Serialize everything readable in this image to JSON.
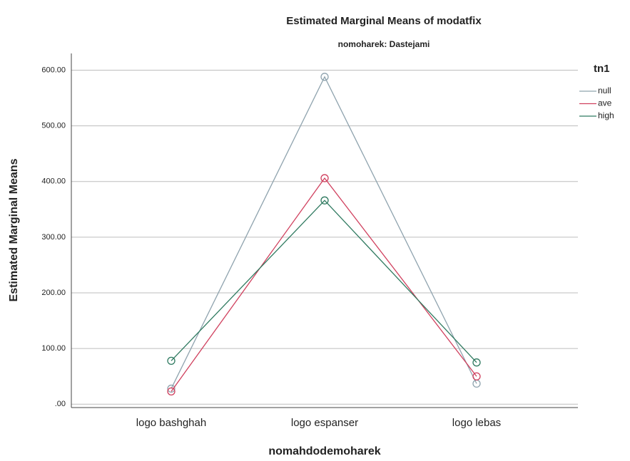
{
  "chart_data": {
    "type": "line",
    "title": "Estimated Marginal Means of modatfix",
    "subtitle": "nomoharek: Dastejami",
    "x_label": "nomahdodemoharek",
    "y_label": "Estimated Marginal Means",
    "categories": [
      "logo bashghah",
      "logo espanser",
      "logo lebas"
    ],
    "legend_title": "tn1",
    "legend": "right",
    "grid": true,
    "series": [
      {
        "name": "null",
        "color": "#8fa3ae",
        "values": [
          28,
          588,
          37
        ]
      },
      {
        "name": "ave",
        "color": "#d0405e",
        "values": [
          23,
          406,
          50
        ]
      },
      {
        "name": "high",
        "color": "#2f7a60",
        "values": [
          78,
          366,
          75
        ]
      }
    ],
    "ylim": [
      -6,
      630
    ],
    "yticks": [
      {
        "value": 0,
        "label": ".00"
      },
      {
        "value": 100,
        "label": "100.00"
      },
      {
        "value": 200,
        "label": "200.00"
      },
      {
        "value": 300,
        "label": "300.00"
      },
      {
        "value": 400,
        "label": "400.00"
      },
      {
        "value": 500,
        "label": "500.00"
      },
      {
        "value": 600,
        "label": "600.00"
      }
    ]
  }
}
